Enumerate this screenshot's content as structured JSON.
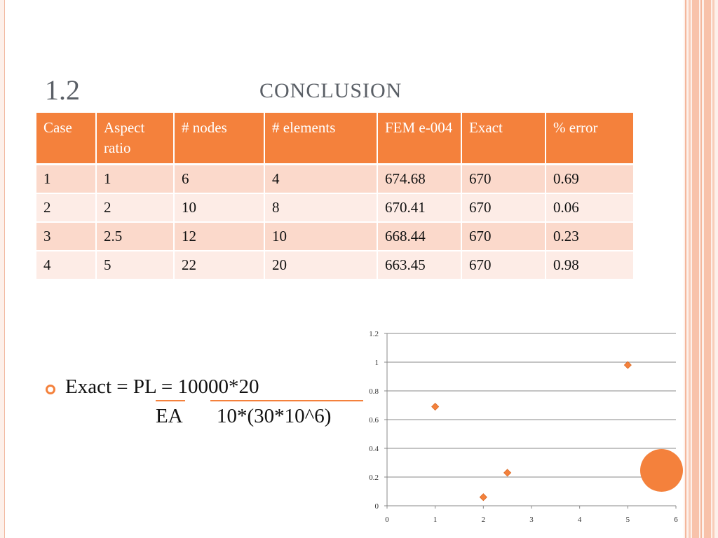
{
  "slide": {
    "title_number": "1.2",
    "title_text": "CONCLUSION"
  },
  "table": {
    "headers": [
      "Case",
      "Aspect ratio",
      "# nodes",
      "# elements",
      "FEM e-004",
      "Exact",
      "% error"
    ],
    "rows": [
      [
        "1",
        "1",
        "6",
        "4",
        "674.68",
        "670",
        "0.69"
      ],
      [
        "2",
        "2",
        "10",
        "8",
        "670.41",
        "670",
        "0.06"
      ],
      [
        "3",
        "2.5",
        "12",
        "10",
        "668.44",
        "670",
        "0.23"
      ],
      [
        "4",
        "5",
        "22",
        "20",
        "663.45",
        "670",
        "0.98"
      ]
    ]
  },
  "formula": {
    "lhs": "Exact = ",
    "num_symbol": "PL",
    "equals": " = ",
    "num_value": "10000*20",
    "den_symbol": "EA",
    "den_value": "10*(30*10^6)"
  },
  "colors": {
    "accent": "#f4813c",
    "row_odd": "#fbd9cb",
    "row_even": "#fdece6"
  },
  "chart_data": {
    "type": "scatter",
    "x": [
      1,
      2,
      2.5,
      5
    ],
    "y": [
      0.69,
      0.06,
      0.23,
      0.98
    ],
    "xlim": [
      0,
      6
    ],
    "ylim": [
      0,
      1.2
    ],
    "xticks": [
      "0",
      "1",
      "2",
      "3",
      "4",
      "5",
      "6"
    ],
    "yticks": [
      "0",
      "0.2",
      "0.4",
      "0.6",
      "0.8",
      "1",
      "1.2"
    ],
    "grid": true,
    "marker": "diamond"
  }
}
